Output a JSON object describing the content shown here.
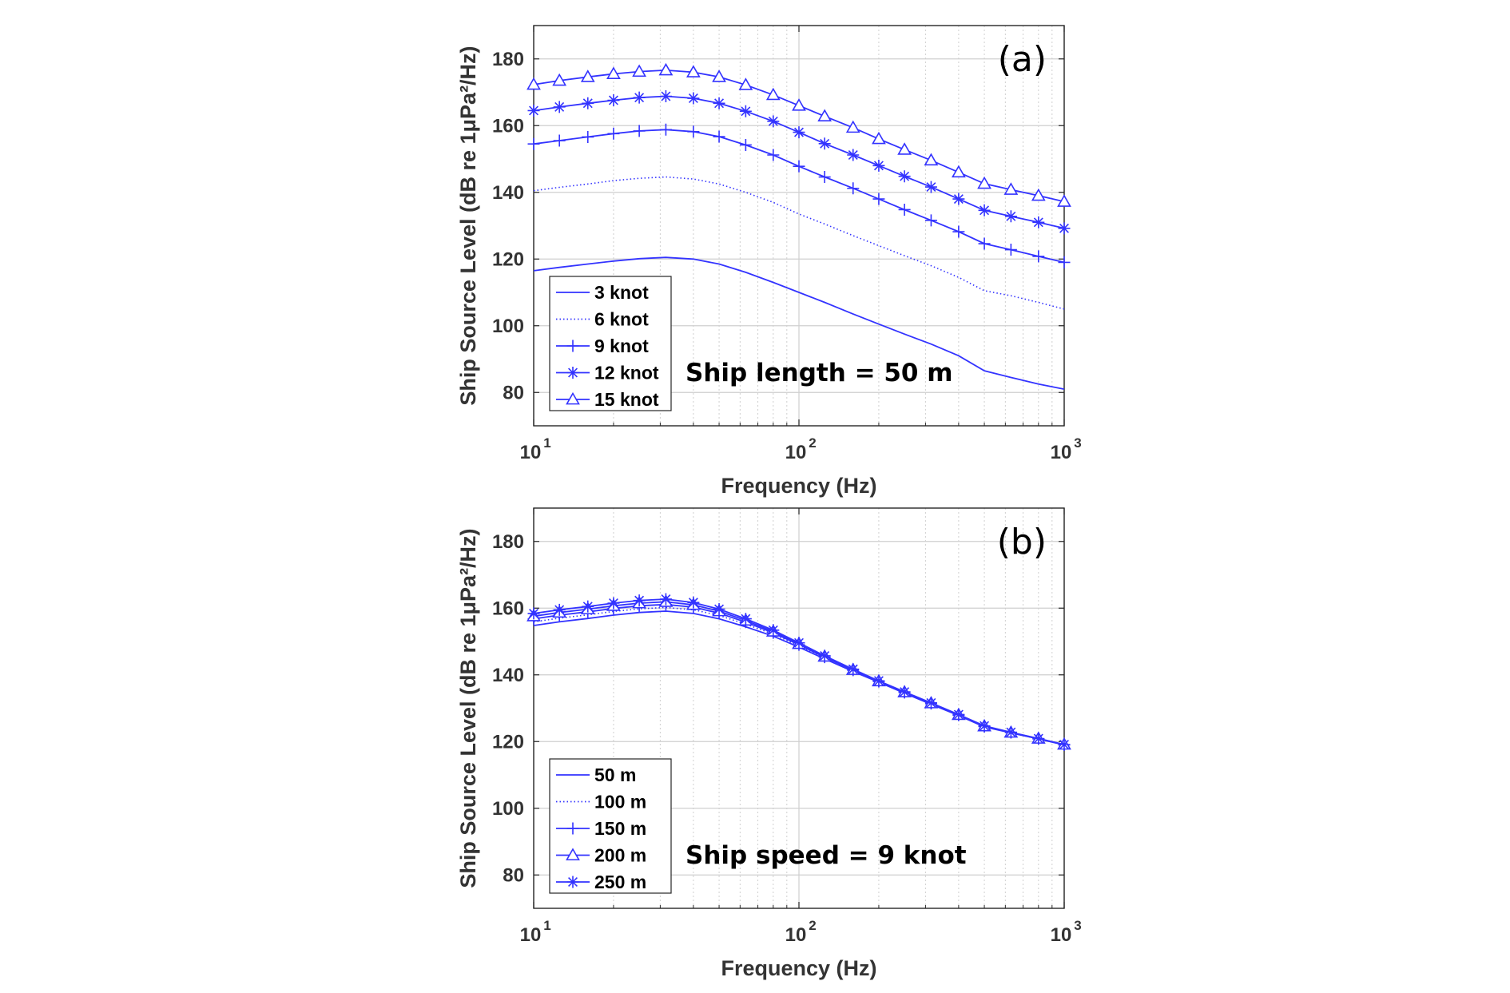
{
  "colors": {
    "series": "#3333ff",
    "grid": "#cfcfcf",
    "axis": "#262626",
    "text": "#333333"
  },
  "chart_data": [
    {
      "type": "line",
      "panel_label": "(a)",
      "annotation": "Ship length = 50 m",
      "xlabel": "Frequency (Hz)",
      "ylabel": "Ship Source Level (dB re 1μPa²/Hz)",
      "xscale": "log",
      "xlim": [
        10,
        1000
      ],
      "ylim": [
        70,
        190
      ],
      "x_ticks": [
        10,
        100,
        1000
      ],
      "x_tick_labels": [
        "10",
        "10",
        "10"
      ],
      "x_tick_exponents": [
        "1",
        "2",
        "3"
      ],
      "y_ticks": [
        80,
        100,
        120,
        140,
        160,
        180
      ],
      "grid": true,
      "legend_position": "bottom-left",
      "x": [
        10,
        12.5,
        16,
        20,
        25,
        31.5,
        40,
        50,
        63,
        80,
        100,
        125,
        160,
        200,
        250,
        315,
        400,
        500,
        630,
        800,
        1000
      ],
      "series": [
        {
          "name": "3 knot",
          "style": "solid",
          "marker": "none",
          "values": [
            116.5,
            117.5,
            118.5,
            119.4,
            120.1,
            120.5,
            120.0,
            118.5,
            116.0,
            113.0,
            110.0,
            107.0,
            103.5,
            100.5,
            97.5,
            94.5,
            91.0,
            86.5,
            84.5,
            82.5,
            81.0
          ]
        },
        {
          "name": "6 knot",
          "style": "dotted",
          "marker": "none",
          "values": [
            140.5,
            141.5,
            142.5,
            143.5,
            144.2,
            144.6,
            144.0,
            142.5,
            140.0,
            137.0,
            133.5,
            130.5,
            127.0,
            124.0,
            121.0,
            118.0,
            114.5,
            110.5,
            109.0,
            107.0,
            105.0
          ]
        },
        {
          "name": "9 knot",
          "style": "solid",
          "marker": "plus",
          "values": [
            154.5,
            155.5,
            156.6,
            157.6,
            158.4,
            158.8,
            158.2,
            156.7,
            154.2,
            151.2,
            147.8,
            144.6,
            141.2,
            138.0,
            134.8,
            131.6,
            128.2,
            124.6,
            122.8,
            120.8,
            119.0
          ]
        },
        {
          "name": "12 knot",
          "style": "solid",
          "marker": "asterisk",
          "values": [
            164.5,
            165.6,
            166.7,
            167.6,
            168.4,
            168.8,
            168.2,
            166.7,
            164.3,
            161.3,
            158.0,
            154.6,
            151.2,
            148.0,
            144.8,
            141.6,
            138.0,
            134.6,
            132.8,
            131.0,
            129.2
          ]
        },
        {
          "name": "15 knot",
          "style": "solid",
          "marker": "triangle",
          "values": [
            172.3,
            173.5,
            174.6,
            175.5,
            176.2,
            176.6,
            176.0,
            174.6,
            172.2,
            169.2,
            166.0,
            162.8,
            159.4,
            156.0,
            152.8,
            149.6,
            146.0,
            142.6,
            140.8,
            139.0,
            137.2
          ]
        }
      ]
    },
    {
      "type": "line",
      "panel_label": "(b)",
      "annotation": "Ship speed = 9 knot",
      "xlabel": "Frequency (Hz)",
      "ylabel": "Ship Source Level (dB re 1μPa²/Hz)",
      "xscale": "log",
      "xlim": [
        10,
        1000
      ],
      "ylim": [
        70,
        190
      ],
      "x_ticks": [
        10,
        100,
        1000
      ],
      "x_tick_labels": [
        "10",
        "10",
        "10"
      ],
      "x_tick_exponents": [
        "1",
        "2",
        "3"
      ],
      "y_ticks": [
        80,
        100,
        120,
        140,
        160,
        180
      ],
      "grid": true,
      "legend_position": "bottom-left",
      "x": [
        10,
        12.5,
        16,
        20,
        25,
        31.5,
        40,
        50,
        63,
        80,
        100,
        125,
        160,
        200,
        250,
        315,
        400,
        500,
        630,
        800,
        1000
      ],
      "series": [
        {
          "name": "50 m",
          "style": "solid",
          "marker": "none",
          "values": [
            154.8,
            155.9,
            156.9,
            157.9,
            158.7,
            159.1,
            158.4,
            156.8,
            154.4,
            151.6,
            148.3,
            144.8,
            141.0,
            137.8,
            134.5,
            131.2,
            127.8,
            124.4,
            122.6,
            120.8,
            119.0
          ]
        },
        {
          "name": "100 m",
          "style": "dotted",
          "marker": "none",
          "values": [
            155.9,
            157.0,
            158.0,
            159.0,
            159.8,
            160.2,
            159.5,
            157.8,
            155.2,
            152.2,
            148.7,
            145.1,
            141.2,
            137.9,
            134.6,
            131.3,
            127.9,
            124.5,
            122.7,
            120.8,
            119.0
          ]
        },
        {
          "name": "150 m",
          "style": "solid",
          "marker": "plus",
          "values": [
            156.8,
            157.9,
            158.9,
            159.9,
            160.7,
            161.1,
            160.3,
            158.5,
            155.8,
            152.6,
            149.0,
            145.3,
            141.4,
            138.0,
            134.7,
            131.4,
            127.9,
            124.5,
            122.7,
            120.8,
            119.0
          ]
        },
        {
          "name": "200 m",
          "style": "solid",
          "marker": "triangle",
          "values": [
            157.6,
            158.7,
            159.7,
            160.7,
            161.5,
            161.9,
            161.0,
            159.1,
            156.3,
            153.0,
            149.3,
            145.5,
            141.5,
            138.1,
            134.8,
            131.5,
            128.0,
            124.6,
            122.7,
            120.9,
            119.1
          ]
        },
        {
          "name": "250 m",
          "style": "solid",
          "marker": "asterisk",
          "values": [
            158.4,
            159.5,
            160.5,
            161.5,
            162.3,
            162.7,
            161.7,
            159.7,
            156.8,
            153.4,
            149.6,
            145.7,
            141.7,
            138.2,
            134.9,
            131.6,
            128.1,
            124.7,
            122.8,
            120.9,
            119.1
          ]
        }
      ]
    }
  ]
}
